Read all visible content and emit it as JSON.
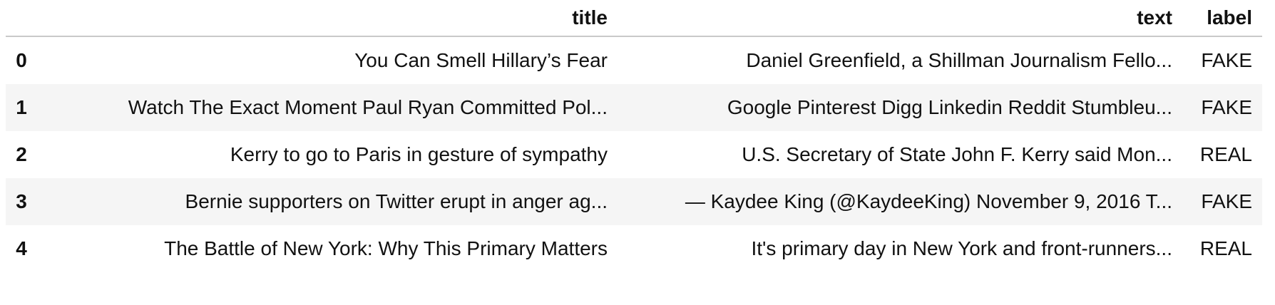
{
  "table": {
    "columns": {
      "index": "",
      "title": "title",
      "text": "text",
      "label": "label"
    },
    "rows": [
      {
        "index": "0",
        "title": "You Can Smell Hillary’s Fear",
        "text": "Daniel Greenfield, a Shillman Journalism Fello...",
        "label": "FAKE"
      },
      {
        "index": "1",
        "title": "Watch The Exact Moment Paul Ryan Committed Pol...",
        "text": "Google Pinterest Digg Linkedin Reddit Stumbleu...",
        "label": "FAKE"
      },
      {
        "index": "2",
        "title": "Kerry to go to Paris in gesture of sympathy",
        "text": "U.S. Secretary of State John F. Kerry said Mon...",
        "label": "REAL"
      },
      {
        "index": "3",
        "title": "Bernie supporters on Twitter erupt in anger ag...",
        "text": "— Kaydee King (@KaydeeKing) November 9, 2016 T...",
        "label": "FAKE"
      },
      {
        "index": "4",
        "title": "The Battle of New York: Why This Primary Matters",
        "text": "It's primary day in New York and front-runners...",
        "label": "REAL"
      }
    ]
  }
}
